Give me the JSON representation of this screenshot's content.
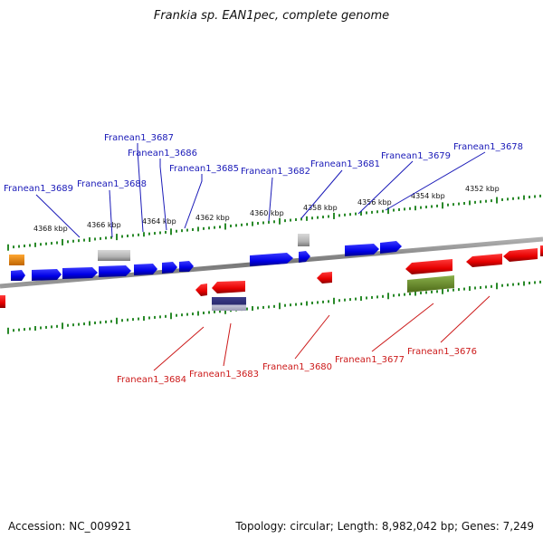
{
  "title": "Frankia sp. EAN1pec, complete genome",
  "footer": {
    "accession": "Accession: NC_009921",
    "summary": "Topology: circular; Length: 8,982,042 bp; Genes: 7,249"
  },
  "ruler_labels": [
    "4368 kbp",
    "4366 kbp",
    "4364 kbp",
    "4362 kbp",
    "4360 kbp",
    "4358 kbp",
    "4356 kbp",
    "4354 kbp",
    "4352 kbp"
  ],
  "top_gene_labels": [
    "Franean1_3689",
    "Franean1_3688",
    "Franean1_3687",
    "Franean1_3686",
    "Franean1_3685",
    "Franean1_3682",
    "Franean1_3681",
    "Franean1_3679",
    "Franean1_3678"
  ],
  "bottom_gene_labels": [
    "Franean1_3684",
    "Franean1_3683",
    "Franean1_3680",
    "Franean1_3677",
    "Franean1_3676"
  ],
  "colors": {
    "forward_strand": "#0000ee",
    "reverse_strand": "#ee0000",
    "top_label": "#1a1ab8",
    "bottom_label": "#cc1a1a",
    "backbone": "#888888",
    "tick": "#2a8a2a",
    "pseudo_gene": "#b8b8b8",
    "orange_gene": "#f08a00",
    "olive_gene": "#6b8e23",
    "navy_gene": "#2f2f7a"
  }
}
